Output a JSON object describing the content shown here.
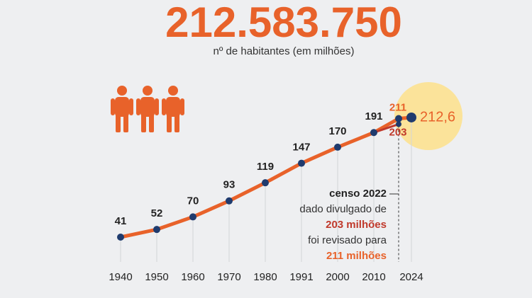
{
  "chart_data": {
    "type": "line",
    "title": "212.583.750",
    "subtitle": "nº de habitantes (em milhões)",
    "categories": [
      "1940",
      "1950",
      "1960",
      "1970",
      "1980",
      "1991",
      "2000",
      "2010",
      null,
      "2024"
    ],
    "series": [
      {
        "color": "#e8622a",
        "values": [
          41,
          52,
          70,
          93,
          119,
          147,
          170,
          191,
          211,
          212.6
        ],
        "value_labels": [
          "41",
          "52",
          "70",
          "93",
          "119",
          "147",
          "170",
          "191",
          "211",
          "212,6"
        ]
      },
      {
        "color": "#c0392b",
        "values": [
          null,
          null,
          null,
          null,
          null,
          null,
          null,
          null,
          203,
          null
        ]
      }
    ],
    "annotation": [
      "censo 2022",
      "dado divulgado de",
      "203 milhões",
      "foi revisado para",
      "211 milhões"
    ]
  }
}
